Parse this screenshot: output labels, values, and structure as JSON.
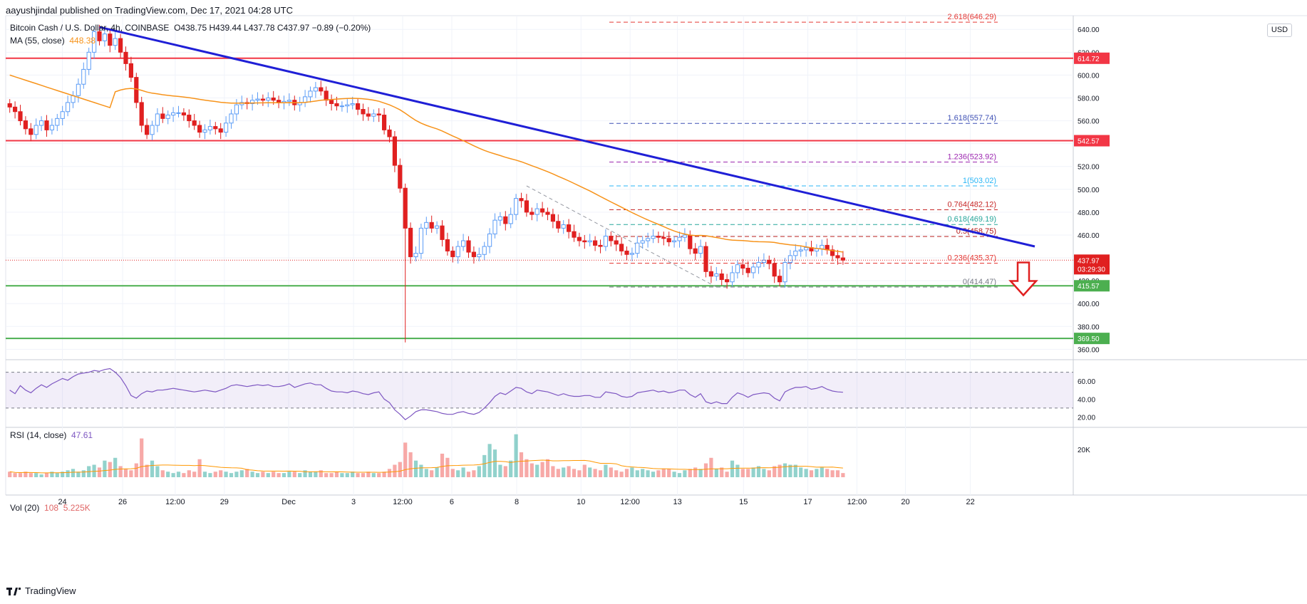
{
  "header": {
    "attribution": "aayushjindal published on TradingView.com, Dec 17, 2021 04:28 UTC",
    "symbol_line": "Bitcoin Cash / U.S. Dollar, 4h, COINBASE",
    "ohlc": "O438.75 H439.44 L437.78 C437.97 −0.89 (−0.20%)",
    "ma_label": "MA (55, close)",
    "ma_value": "448.38",
    "currency": "USD"
  },
  "rsi_legend": {
    "label": "RSI (14, close)",
    "value": "47.61"
  },
  "vol_legend": {
    "label": "Vol (20)",
    "value": "108",
    "value2": "5.225K"
  },
  "footer": {
    "brand": "TradingView"
  },
  "chart_data": {
    "type": "candlestick",
    "title": "Bitcoin Cash / U.S. Dollar, 4h, COINBASE",
    "x_ticks": [
      "24",
      "26",
      "12:00",
      "29",
      "Dec",
      "3",
      "12:00",
      "6",
      "8",
      "10",
      "12:00",
      "13",
      "15",
      "17",
      "12:00",
      "20",
      "22"
    ],
    "price_axis": {
      "ticks": [
        360,
        380,
        400,
        420,
        440,
        460,
        480,
        500,
        520,
        540,
        560,
        580,
        600,
        620,
        640
      ],
      "ylim": [
        354,
        652
      ]
    },
    "closes": [
      572,
      568,
      560,
      553,
      548,
      556,
      560,
      552,
      556,
      562,
      568,
      576,
      582,
      592,
      605,
      620,
      638,
      630,
      636,
      626,
      632,
      620,
      610,
      598,
      576,
      556,
      548,
      556,
      566,
      562,
      565,
      567,
      567,
      565,
      560,
      556,
      550,
      552,
      555,
      553,
      550,
      558,
      566,
      574,
      576,
      575,
      578,
      579,
      578,
      580,
      578,
      576,
      577,
      578,
      574,
      576,
      581,
      586,
      589,
      586,
      578,
      575,
      573,
      573,
      574,
      575,
      570,
      566,
      564,
      566,
      565,
      552,
      546,
      521,
      501,
      466,
      441,
      444,
      466,
      471,
      466,
      468,
      456,
      446,
      441,
      450,
      455,
      445,
      441,
      443,
      450,
      461,
      473,
      476,
      470,
      478,
      492,
      490,
      480,
      478,
      483,
      480,
      478,
      472,
      466,
      469,
      463,
      458,
      455,
      454,
      455,
      451,
      450,
      459,
      455,
      452,
      446,
      443,
      444,
      453,
      455,
      457,
      459,
      458,
      457,
      454,
      455,
      458,
      460,
      448,
      444,
      450,
      428,
      424,
      426,
      421,
      419,
      427,
      434,
      431,
      427,
      432,
      436,
      438,
      435,
      424,
      419,
      436,
      442,
      446,
      447,
      449,
      446,
      448,
      451,
      447,
      442,
      440,
      438
    ],
    "ohlc_last": {
      "open": 438.75,
      "high": 439.44,
      "low": 437.78,
      "close": 437.97
    },
    "ma55": {
      "name": "MA (55, close)",
      "last": 448.38
    },
    "horizontal_levels": [
      {
        "label": "614.72",
        "value": 614.72,
        "color": "#f23645"
      },
      {
        "label": "542.57",
        "value": 542.57,
        "color": "#f23645"
      },
      {
        "label": "415.57",
        "value": 415.57,
        "color": "#4caf50"
      },
      {
        "label": "369.50",
        "value": 369.5,
        "color": "#4caf50"
      }
    ],
    "current_price": {
      "label": "437.97",
      "timer": "03:29:30",
      "value": 437.97
    },
    "fib_levels": [
      {
        "label": "2.618(646.29)",
        "value": 646.29,
        "color": "#e53935"
      },
      {
        "label": "1.618(557.74)",
        "value": 557.74,
        "color": "#3f51b5"
      },
      {
        "label": "1.236(523.92)",
        "value": 523.92,
        "color": "#9c27b0"
      },
      {
        "label": "1(503.02)",
        "value": 503.02,
        "color": "#29b6f6"
      },
      {
        "label": "0.764(482.12)",
        "value": 482.12,
        "color": "#c62828"
      },
      {
        "label": "0.618(469.19)",
        "value": 469.19,
        "color": "#26a69a"
      },
      {
        "label": "0.5(458.75)",
        "value": 458.75,
        "color": "#b71c1c"
      },
      {
        "label": "0.236(435.37)",
        "value": 435.37,
        "color": "#e53935"
      },
      {
        "label": "0(414.47)",
        "value": 414.47,
        "color": "#787b86"
      }
    ],
    "trendline": {
      "from": 642,
      "to": 450,
      "color": "#1f1fd6"
    },
    "annotation": "down-arrow",
    "rsi": {
      "label": "RSI (14, close)",
      "ticks": [
        20.0,
        40.0,
        60.0
      ],
      "ylim": [
        10,
        80
      ],
      "bands": [
        30,
        70
      ],
      "values": [
        50,
        46,
        55,
        50,
        47,
        52,
        56,
        53,
        57,
        60,
        63,
        61,
        65,
        68,
        69,
        70,
        72,
        71,
        73,
        74,
        70,
        64,
        55,
        44,
        41,
        46,
        49,
        48,
        50,
        50,
        51,
        52,
        51,
        50,
        49,
        48,
        49,
        50,
        49,
        48,
        50,
        52,
        55,
        56,
        55,
        54,
        55,
        56,
        55,
        56,
        54,
        54,
        55,
        57,
        53,
        55,
        57,
        58,
        56,
        56,
        52,
        49,
        48,
        48,
        47,
        49,
        48,
        46,
        45,
        47,
        48,
        40,
        36,
        28,
        23,
        17,
        21,
        26,
        28,
        28,
        27,
        26,
        24,
        23,
        23,
        25,
        26,
        24,
        23,
        25,
        30,
        36,
        43,
        47,
        45,
        49,
        53,
        52,
        48,
        46,
        50,
        49,
        48,
        46,
        44,
        46,
        44,
        43,
        43,
        44,
        44,
        42,
        42,
        48,
        47,
        46,
        43,
        42,
        43,
        47,
        48,
        49,
        50,
        48,
        49,
        47,
        48,
        50,
        50,
        45,
        42,
        46,
        37,
        35,
        37,
        35,
        35,
        42,
        47,
        45,
        42,
        45,
        46,
        47,
        46,
        41,
        38,
        48,
        51,
        53,
        53,
        54,
        51,
        52,
        54,
        51,
        49,
        48,
        47.61
      ]
    },
    "volume": {
      "label": "Vol (20)",
      "ticks": [
        "20K"
      ],
      "unit_k": 1,
      "values": [
        4,
        3,
        3,
        4,
        3,
        3,
        2,
        3,
        4,
        3,
        4,
        5,
        6,
        4,
        5,
        8,
        9,
        7,
        12,
        11,
        14,
        8,
        6,
        5,
        10,
        28,
        9,
        12,
        8,
        5,
        4,
        3,
        4,
        3,
        5,
        4,
        13,
        4,
        3,
        4,
        5,
        4,
        3,
        4,
        5,
        6,
        4,
        3,
        4,
        3,
        4,
        3,
        3,
        4,
        4,
        3,
        5,
        4,
        4,
        5,
        3,
        3,
        4,
        3,
        3,
        4,
        3,
        3,
        4,
        3,
        3,
        4,
        6,
        9,
        11,
        25,
        18,
        12,
        9,
        6,
        5,
        7,
        17,
        14,
        6,
        5,
        7,
        4,
        5,
        8,
        16,
        24,
        20,
        9,
        8,
        12,
        31,
        18,
        13,
        10,
        9,
        11,
        13,
        8,
        6,
        7,
        8,
        6,
        5,
        9,
        7,
        6,
        5,
        9,
        7,
        5,
        4,
        6,
        7,
        5,
        6,
        5,
        4,
        5,
        6,
        6,
        4,
        3,
        5,
        6,
        7,
        6,
        10,
        14,
        6,
        7,
        4,
        12,
        9,
        6,
        6,
        7,
        8,
        6,
        5,
        8,
        9,
        10,
        9,
        9,
        7,
        6,
        5,
        6,
        7,
        6,
        5,
        5,
        3
      ]
    },
    "up_color": "#5b9cf6",
    "down_color": "#e02020",
    "ma_color": "#f7931a",
    "rsi_color": "#7e57c2"
  }
}
